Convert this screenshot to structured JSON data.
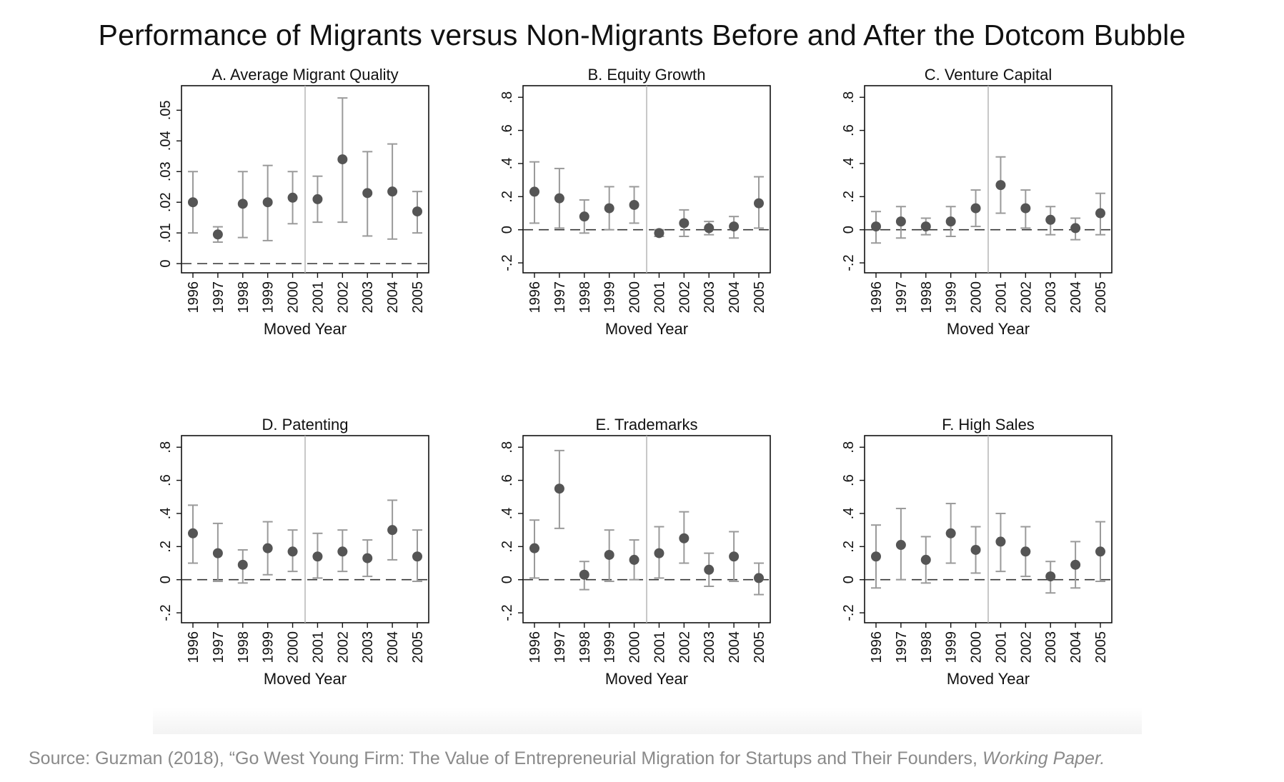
{
  "title": "Performance of Migrants versus Non-Migrants Before and After the Dotcom Bubble",
  "source": {
    "text": "Source: Guzman (2018), “Go West Young Firm: The Value of Entrepreneurial Migration for Startups and Their Founders, ",
    "italic": "Working Paper."
  },
  "colors": {
    "point": "#555555",
    "errorbar": "#9a9a9a",
    "vline": "#bbbbbb",
    "zeroline": "#333333",
    "axis": "#111111"
  },
  "chart_data": [
    {
      "type": "scatter",
      "title": "A. Average Migrant Quality",
      "xlabel": "Moved Year",
      "ylabel": "",
      "categories": [
        "1996",
        "1997",
        "1998",
        "1999",
        "2000",
        "2001",
        "2002",
        "2003",
        "2004",
        "2005"
      ],
      "values": [
        0.02,
        0.0095,
        0.0195,
        0.02,
        0.0215,
        0.021,
        0.034,
        0.023,
        0.0235,
        0.017
      ],
      "lower": [
        0.01,
        0.007,
        0.0085,
        0.0075,
        0.013,
        0.0135,
        0.0135,
        0.009,
        0.008,
        0.01
      ],
      "upper": [
        0.03,
        0.012,
        0.03,
        0.032,
        0.03,
        0.0285,
        0.054,
        0.0365,
        0.039,
        0.0235
      ],
      "ylim": [
        -0.003,
        0.058
      ],
      "yticks": [
        0,
        0.01,
        0.02,
        0.03,
        0.04,
        0.05
      ],
      "ytick_labels": [
        "0",
        ".01",
        ".02",
        ".03",
        ".04",
        ".05"
      ],
      "reference_line_y": 0,
      "vertical_line_between": [
        "2000",
        "2001"
      ],
      "grid": false
    },
    {
      "type": "scatter",
      "title": "B. Equity Growth",
      "xlabel": "Moved Year",
      "ylabel": "",
      "categories": [
        "1996",
        "1997",
        "1998",
        "1999",
        "2000",
        "2001",
        "2002",
        "2003",
        "2004",
        "2005"
      ],
      "values": [
        0.23,
        0.19,
        0.08,
        0.13,
        0.15,
        -0.02,
        0.04,
        0.01,
        0.02,
        0.16
      ],
      "lower": [
        0.04,
        0.01,
        -0.02,
        0.0,
        0.04,
        -0.04,
        -0.04,
        -0.03,
        -0.05,
        0.01
      ],
      "upper": [
        0.41,
        0.37,
        0.18,
        0.26,
        0.26,
        0.0,
        0.12,
        0.05,
        0.08,
        0.32
      ],
      "ylim": [
        -0.26,
        0.87
      ],
      "yticks": [
        -0.2,
        0,
        0.2,
        0.4,
        0.6,
        0.8
      ],
      "ytick_labels": [
        "-.2",
        "0",
        ".2",
        ".4",
        ".6",
        ".8"
      ],
      "reference_line_y": 0,
      "vertical_line_between": [
        "2000",
        "2001"
      ],
      "grid": false
    },
    {
      "type": "scatter",
      "title": "C. Venture Capital",
      "xlabel": "Moved Year",
      "ylabel": "",
      "categories": [
        "1996",
        "1997",
        "1998",
        "1999",
        "2000",
        "2001",
        "2002",
        "2003",
        "2004",
        "2005"
      ],
      "values": [
        0.02,
        0.05,
        0.02,
        0.05,
        0.13,
        0.27,
        0.13,
        0.06,
        0.01,
        0.1
      ],
      "lower": [
        -0.08,
        -0.05,
        -0.03,
        -0.04,
        0.02,
        0.1,
        0.01,
        -0.03,
        -0.06,
        -0.03
      ],
      "upper": [
        0.11,
        0.14,
        0.07,
        0.14,
        0.24,
        0.44,
        0.24,
        0.14,
        0.07,
        0.22
      ],
      "ylim": [
        -0.26,
        0.87
      ],
      "yticks": [
        -0.2,
        0,
        0.2,
        0.4,
        0.6,
        0.8
      ],
      "ytick_labels": [
        "-.2",
        "0",
        ".2",
        ".4",
        ".6",
        ".8"
      ],
      "reference_line_y": 0,
      "vertical_line_between": [
        "2000",
        "2001"
      ],
      "grid": false
    },
    {
      "type": "scatter",
      "title": "D. Patenting",
      "xlabel": "Moved Year",
      "ylabel": "",
      "categories": [
        "1996",
        "1997",
        "1998",
        "1999",
        "2000",
        "2001",
        "2002",
        "2003",
        "2004",
        "2005"
      ],
      "values": [
        0.28,
        0.16,
        0.09,
        0.19,
        0.17,
        0.14,
        0.17,
        0.13,
        0.3,
        0.14
      ],
      "lower": [
        0.1,
        -0.01,
        -0.02,
        0.03,
        0.05,
        0.01,
        0.05,
        0.02,
        0.12,
        -0.01
      ],
      "upper": [
        0.45,
        0.34,
        0.18,
        0.35,
        0.3,
        0.28,
        0.3,
        0.24,
        0.48,
        0.3
      ],
      "ylim": [
        -0.26,
        0.87
      ],
      "yticks": [
        -0.2,
        0,
        0.2,
        0.4,
        0.6,
        0.8
      ],
      "ytick_labels": [
        "-.2",
        "0",
        ".2",
        ".4",
        ".6",
        ".8"
      ],
      "reference_line_y": 0,
      "vertical_line_between": [
        "2000",
        "2001"
      ],
      "grid": false
    },
    {
      "type": "scatter",
      "title": "E. Trademarks",
      "xlabel": "Moved Year",
      "ylabel": "",
      "categories": [
        "1996",
        "1997",
        "1998",
        "1999",
        "2000",
        "2001",
        "2002",
        "2003",
        "2004",
        "2005"
      ],
      "values": [
        0.19,
        0.55,
        0.03,
        0.15,
        0.12,
        0.16,
        0.25,
        0.06,
        0.14,
        0.01
      ],
      "lower": [
        0.01,
        0.31,
        -0.06,
        -0.01,
        0.0,
        0.01,
        0.1,
        -0.04,
        -0.01,
        -0.09
      ],
      "upper": [
        0.36,
        0.78,
        0.11,
        0.3,
        0.24,
        0.32,
        0.41,
        0.16,
        0.29,
        0.1
      ],
      "ylim": [
        -0.26,
        0.87
      ],
      "yticks": [
        -0.2,
        0,
        0.2,
        0.4,
        0.6,
        0.8
      ],
      "ytick_labels": [
        "-.2",
        "0",
        ".2",
        ".4",
        ".6",
        ".8"
      ],
      "reference_line_y": 0,
      "vertical_line_between": [
        "2000",
        "2001"
      ],
      "grid": false
    },
    {
      "type": "scatter",
      "title": "F. High Sales",
      "xlabel": "Moved Year",
      "ylabel": "",
      "categories": [
        "1996",
        "1997",
        "1998",
        "1999",
        "2000",
        "2001",
        "2002",
        "2003",
        "2004",
        "2005"
      ],
      "values": [
        0.14,
        0.21,
        0.12,
        0.28,
        0.18,
        0.23,
        0.17,
        0.02,
        0.09,
        0.17
      ],
      "lower": [
        -0.05,
        0.0,
        -0.02,
        0.1,
        0.04,
        0.05,
        0.02,
        -0.08,
        -0.05,
        -0.01
      ],
      "upper": [
        0.33,
        0.43,
        0.26,
        0.46,
        0.32,
        0.4,
        0.32,
        0.11,
        0.23,
        0.35
      ],
      "ylim": [
        -0.26,
        0.87
      ],
      "yticks": [
        -0.2,
        0,
        0.2,
        0.4,
        0.6,
        0.8
      ],
      "ytick_labels": [
        "-.2",
        "0",
        ".2",
        ".4",
        ".6",
        ".8"
      ],
      "reference_line_y": 0,
      "vertical_line_between": [
        "2000",
        "2001"
      ],
      "grid": false
    }
  ]
}
